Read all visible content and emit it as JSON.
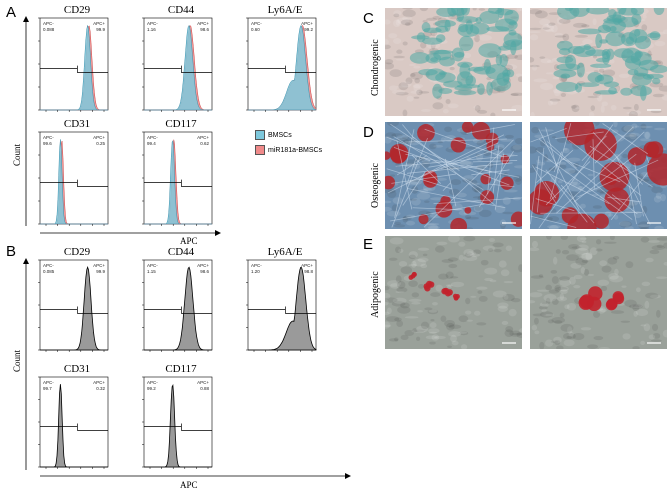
{
  "figure": {
    "panel_labels": {
      "A": "A",
      "B": "B",
      "C": "C",
      "D": "D",
      "E": "E"
    },
    "count_label": "Count",
    "apc_label": "APC",
    "apc_minus": "APC-",
    "apc_plus": "APC+",
    "legend": [
      {
        "label": "BMSCs",
        "color": "#7ec8dc"
      },
      {
        "label": "miR181a-BMSCs",
        "color": "#f08a8a"
      }
    ],
    "panelA": {
      "plots": [
        {
          "title": "CD29",
          "left": "0.088",
          "right": "99.9"
        },
        {
          "title": "CD44",
          "left": "1.16",
          "right": "98.6"
        },
        {
          "title": "Ly6A/E",
          "left": "0.60",
          "right": "99.2"
        },
        {
          "title": "CD31",
          "left": "99.6",
          "right": "0.25"
        },
        {
          "title": "CD117",
          "left": "99.4",
          "right": "0.62"
        }
      ]
    },
    "panelB": {
      "plots": [
        {
          "title": "CD29",
          "left": "0.085",
          "right": "99.9"
        },
        {
          "title": "CD44",
          "left": "1.15",
          "right": "98.6"
        },
        {
          "title": "Ly6A/E",
          "left": "1.20",
          "right": "98.8"
        },
        {
          "title": "CD31",
          "left": "99.7",
          "right": "0.32"
        },
        {
          "title": "CD117",
          "left": "99.2",
          "right": "0.88"
        }
      ]
    },
    "staining": {
      "chondrogenic": "Chondrogenic",
      "osteogenic": "Osteogenic",
      "adipogenic": "Adipogenic"
    },
    "colors": {
      "bmsc": "#7ec8dc",
      "mir": "#f08a8a",
      "gray_hist": "#9a9a9a",
      "chondro_bg": "#d9c9c4",
      "chondro_stain": "#4fa7a4",
      "osteo_bg": "#6d8fb0",
      "osteo_stain": "#b3262a",
      "adipo_bg": "#9aa19a",
      "adipo_stain": "#c2222c"
    }
  }
}
